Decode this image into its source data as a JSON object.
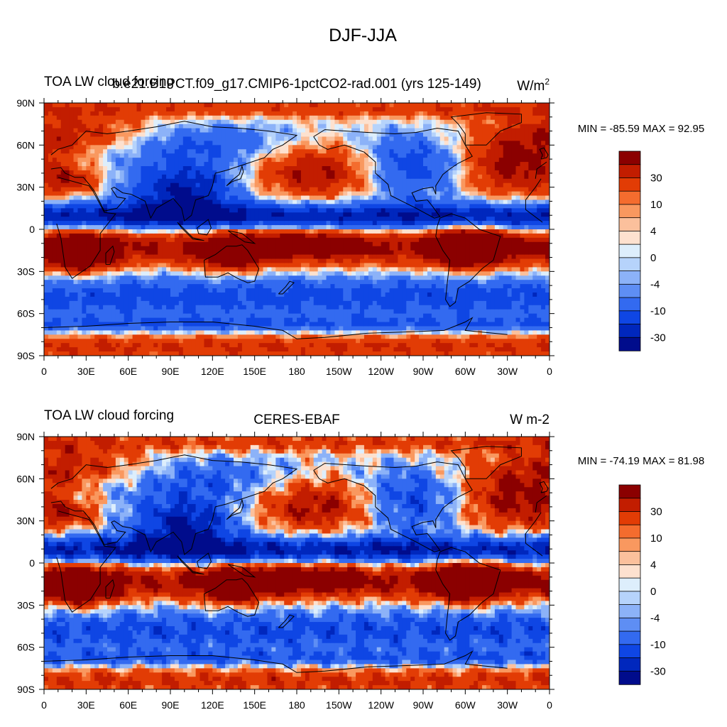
{
  "main_title": "DJF-JJA",
  "panels": [
    {
      "left_title": "TOA LW cloud forcing",
      "center_title": "b.e21.B1PCT.f09_g17.CMIP6-1pctCO2-rad.001 (yrs 125-149)",
      "units_main": "W/m",
      "units_sup": "2",
      "min_max": "MIN = -85.59 MAX =  92.95"
    },
    {
      "left_title": "TOA LW cloud forcing",
      "center_title": "CERES-EBAF",
      "units_main": "W m-2",
      "units_sup": "",
      "min_max": "MIN = -74.19 MAX =  81.98"
    }
  ],
  "chart_data": {
    "type": "heatmap",
    "title": "DJF-JJA",
    "variable": "TOA LW cloud forcing",
    "units": "W/m2",
    "x_ticks": [
      "0",
      "30E",
      "60E",
      "90E",
      "120E",
      "150E",
      "180",
      "150W",
      "120W",
      "90W",
      "60W",
      "30W",
      "0"
    ],
    "y_ticks": [
      "90N",
      "60N",
      "30N",
      "0",
      "30S",
      "60S",
      "90S"
    ],
    "xlim": [
      0,
      360
    ],
    "ylim": [
      -90,
      90
    ],
    "colorbar": {
      "levels": [
        -40,
        -30,
        -20,
        -10,
        -8,
        -4,
        -2,
        0,
        2,
        4,
        8,
        10,
        20,
        30,
        40
      ],
      "labels": [
        "30",
        "10",
        "4",
        "0",
        "-4",
        "-10",
        "-30"
      ],
      "colors": [
        "#8b0000",
        "#c21d00",
        "#e23c05",
        "#f46c2e",
        "#f9985f",
        "#fbc09c",
        "#fde1cf",
        "#ddeefc",
        "#b6d3fb",
        "#8cb2f8",
        "#5e8ef4",
        "#336af0",
        "#0f46e4",
        "#0027bd",
        "#000c8c"
      ]
    },
    "panels": [
      {
        "name": "b.e21.B1PCT.f09_g17.CMIP6-1pctCO2-rad.001 (yrs 125-149)",
        "min": -85.59,
        "max": 92.95
      },
      {
        "name": "CERES-EBAF",
        "min": -74.19,
        "max": 81.98
      }
    ]
  }
}
